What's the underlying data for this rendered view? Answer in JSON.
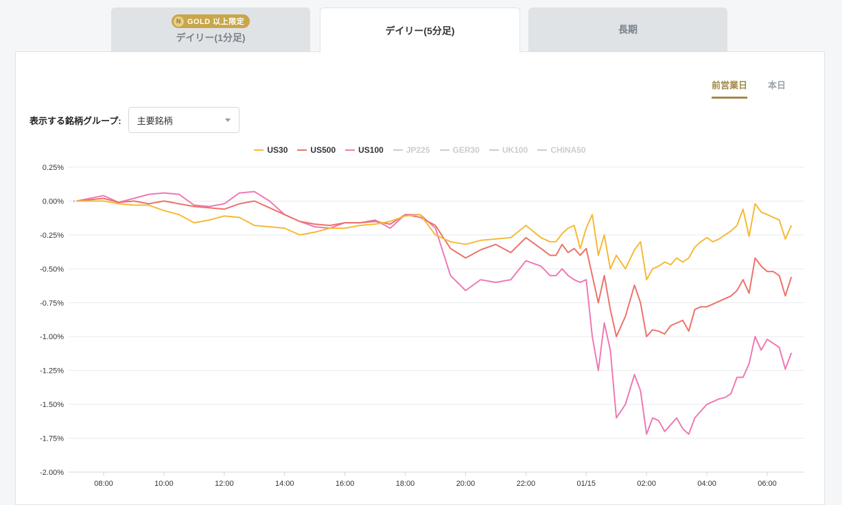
{
  "tabs": [
    {
      "label": "デイリー(1分足)",
      "badge": "GOLD 以上限定",
      "active": false
    },
    {
      "label": "デイリー(5分足)",
      "active": true
    },
    {
      "label": "長期",
      "active": false
    }
  ],
  "period": {
    "prev_day": "前営業日",
    "today": "本日"
  },
  "group": {
    "label": "表示する銘柄グループ:",
    "selected": "主要銘柄"
  },
  "colors": {
    "US30": "#f5b935",
    "US500": "#ec7268",
    "US100": "#ef78b4",
    "inactive": "#cccccc",
    "accent": "#a08a48"
  },
  "chart_data": {
    "type": "line",
    "y_ticks": [
      "0.25%",
      "0.00%",
      "-0.25%",
      "-0.50%",
      "-0.75%",
      "-1.00%",
      "-1.25%",
      "-1.50%",
      "-1.75%",
      "-2.00%"
    ],
    "x_ticks": [
      "08:00",
      "10:00",
      "12:00",
      "14:00",
      "16:00",
      "18:00",
      "20:00",
      "22:00",
      "01/15",
      "02:00",
      "04:00",
      "06:00"
    ],
    "ylim": [
      -2.0,
      0.25
    ],
    "x_hours": [
      8,
      10,
      12,
      14,
      16,
      18,
      20,
      22,
      24,
      26,
      28,
      30
    ],
    "grid": true,
    "series": [
      {
        "name": "US30",
        "visible": true,
        "x": [
          7.1,
          8.0,
          8.5,
          9.0,
          9.5,
          10.0,
          10.5,
          11.0,
          11.5,
          12.0,
          12.5,
          13.0,
          13.5,
          14.0,
          14.5,
          15.0,
          15.5,
          16.0,
          16.5,
          17.0,
          17.5,
          18.0,
          18.5,
          19.0,
          19.5,
          20.0,
          20.5,
          21.0,
          21.5,
          22.0,
          22.5,
          22.8,
          23.0,
          23.2,
          23.4,
          23.6,
          23.8,
          24.0,
          24.2,
          24.4,
          24.6,
          24.8,
          25.0,
          25.3,
          25.6,
          25.8,
          26.0,
          26.2,
          26.4,
          26.6,
          26.8,
          27.0,
          27.2,
          27.4,
          27.6,
          27.8,
          28.0,
          28.2,
          28.4,
          28.6,
          28.8,
          29.0,
          29.2,
          29.4,
          29.6,
          29.8,
          30.0,
          30.2,
          30.4,
          30.6,
          30.8
        ],
        "y": [
          0.0,
          0.0,
          -0.02,
          -0.03,
          -0.03,
          -0.07,
          -0.1,
          -0.16,
          -0.14,
          -0.11,
          -0.12,
          -0.18,
          -0.19,
          -0.2,
          -0.25,
          -0.23,
          -0.2,
          -0.2,
          -0.18,
          -0.17,
          -0.15,
          -0.11,
          -0.1,
          -0.25,
          -0.3,
          -0.32,
          -0.29,
          -0.28,
          -0.27,
          -0.18,
          -0.27,
          -0.3,
          -0.3,
          -0.24,
          -0.2,
          -0.18,
          -0.35,
          -0.2,
          -0.1,
          -0.4,
          -0.25,
          -0.5,
          -0.4,
          -0.5,
          -0.36,
          -0.3,
          -0.58,
          -0.5,
          -0.48,
          -0.45,
          -0.47,
          -0.42,
          -0.45,
          -0.42,
          -0.34,
          -0.3,
          -0.27,
          -0.3,
          -0.28,
          -0.25,
          -0.22,
          -0.18,
          -0.06,
          -0.26,
          -0.02,
          -0.08,
          -0.1,
          -0.12,
          -0.14,
          -0.28,
          -0.18
        ]
      },
      {
        "name": "US500",
        "visible": true,
        "x": [
          7.1,
          8.0,
          8.5,
          9.0,
          9.5,
          10.0,
          10.5,
          11.0,
          11.5,
          12.0,
          12.5,
          13.0,
          13.5,
          14.0,
          14.5,
          15.0,
          15.5,
          16.0,
          16.5,
          17.0,
          17.5,
          18.0,
          18.5,
          19.0,
          19.5,
          20.0,
          20.5,
          21.0,
          21.5,
          22.0,
          22.5,
          22.8,
          23.0,
          23.2,
          23.4,
          23.6,
          23.8,
          24.0,
          24.2,
          24.4,
          24.6,
          24.8,
          25.0,
          25.3,
          25.6,
          25.8,
          26.0,
          26.2,
          26.4,
          26.6,
          26.8,
          27.0,
          27.2,
          27.4,
          27.6,
          27.8,
          28.0,
          28.2,
          28.4,
          28.6,
          28.8,
          29.0,
          29.2,
          29.4,
          29.6,
          29.8,
          30.0,
          30.2,
          30.4,
          30.6,
          30.8
        ],
        "y": [
          0.0,
          0.02,
          -0.01,
          0.0,
          -0.02,
          0.0,
          -0.02,
          -0.04,
          -0.05,
          -0.06,
          -0.02,
          0.0,
          -0.05,
          -0.1,
          -0.15,
          -0.17,
          -0.18,
          -0.16,
          -0.16,
          -0.15,
          -0.17,
          -0.1,
          -0.12,
          -0.18,
          -0.35,
          -0.42,
          -0.36,
          -0.32,
          -0.38,
          -0.27,
          -0.35,
          -0.4,
          -0.4,
          -0.32,
          -0.38,
          -0.35,
          -0.4,
          -0.35,
          -0.55,
          -0.75,
          -0.55,
          -0.8,
          -1.0,
          -0.85,
          -0.62,
          -0.75,
          -1.0,
          -0.95,
          -0.96,
          -0.98,
          -0.92,
          -0.9,
          -0.88,
          -0.96,
          -0.8,
          -0.78,
          -0.78,
          -0.76,
          -0.74,
          -0.72,
          -0.7,
          -0.66,
          -0.58,
          -0.68,
          -0.42,
          -0.48,
          -0.52,
          -0.52,
          -0.55,
          -0.7,
          -0.56
        ]
      },
      {
        "name": "US100",
        "visible": true,
        "x": [
          7.1,
          8.0,
          8.5,
          9.0,
          9.5,
          10.0,
          10.5,
          11.0,
          11.5,
          12.0,
          12.5,
          13.0,
          13.5,
          14.0,
          14.5,
          15.0,
          15.5,
          16.0,
          16.5,
          17.0,
          17.5,
          18.0,
          18.5,
          19.0,
          19.5,
          20.0,
          20.5,
          21.0,
          21.5,
          22.0,
          22.5,
          22.8,
          23.0,
          23.2,
          23.4,
          23.6,
          23.8,
          24.0,
          24.2,
          24.4,
          24.6,
          24.8,
          25.0,
          25.3,
          25.6,
          25.8,
          26.0,
          26.2,
          26.4,
          26.6,
          26.8,
          27.0,
          27.2,
          27.4,
          27.6,
          27.8,
          28.0,
          28.2,
          28.4,
          28.6,
          28.8,
          29.0,
          29.2,
          29.4,
          29.6,
          29.8,
          30.0,
          30.2,
          30.4,
          30.6,
          30.8
        ],
        "y": [
          0.0,
          0.04,
          -0.01,
          0.02,
          0.05,
          0.06,
          0.05,
          -0.03,
          -0.04,
          -0.02,
          0.06,
          0.07,
          0.0,
          -0.1,
          -0.15,
          -0.19,
          -0.2,
          -0.16,
          -0.16,
          -0.14,
          -0.2,
          -0.1,
          -0.1,
          -0.2,
          -0.55,
          -0.66,
          -0.58,
          -0.6,
          -0.58,
          -0.44,
          -0.48,
          -0.55,
          -0.55,
          -0.5,
          -0.55,
          -0.58,
          -0.6,
          -0.58,
          -1.0,
          -1.25,
          -0.9,
          -1.1,
          -1.6,
          -1.5,
          -1.28,
          -1.4,
          -1.72,
          -1.6,
          -1.62,
          -1.7,
          -1.65,
          -1.6,
          -1.68,
          -1.72,
          -1.6,
          -1.55,
          -1.5,
          -1.48,
          -1.46,
          -1.45,
          -1.42,
          -1.3,
          -1.3,
          -1.2,
          -1.0,
          -1.1,
          -1.02,
          -1.05,
          -1.08,
          -1.24,
          -1.12
        ]
      },
      {
        "name": "JP225",
        "visible": false
      },
      {
        "name": "GER30",
        "visible": false
      },
      {
        "name": "UK100",
        "visible": false
      },
      {
        "name": "CHINA50",
        "visible": false
      }
    ]
  }
}
